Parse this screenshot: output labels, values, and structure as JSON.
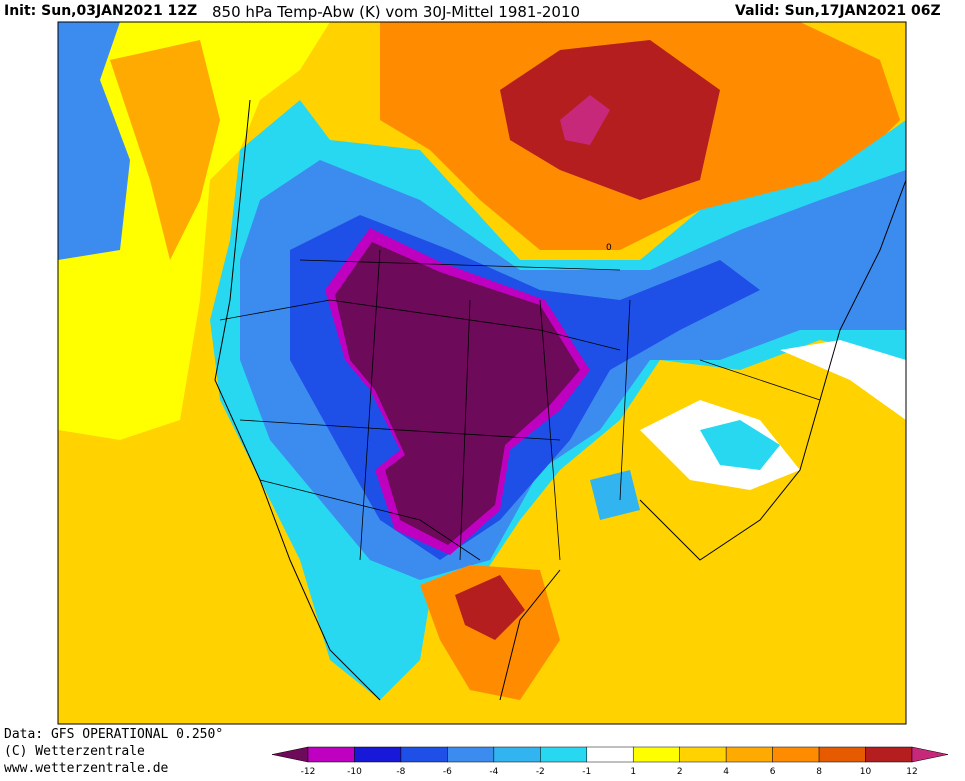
{
  "header": {
    "init": "Init: Sun,03JAN2021 12Z",
    "title": "850 hPa Temp-Abw (K) vom 30J-Mittel 1981-2010",
    "valid": "Valid: Sun,17JAN2021 06Z"
  },
  "footer": {
    "data": "Data: GFS OPERATIONAL 0.250°",
    "copyright": "(C) Wetterzentrale",
    "url": "www.wetterzentrale.de"
  },
  "contour_label": "0",
  "colorbar": {
    "ticks": [
      -12,
      -10,
      -8,
      -6,
      -4,
      -2,
      -1,
      1,
      2,
      4,
      6,
      8,
      10,
      12
    ],
    "colors": [
      "#6e0a5a",
      "#c000c0",
      "#1818d8",
      "#1e50e8",
      "#3c8cf0",
      "#32b4f0",
      "#28d8f0",
      "#ffffff",
      "#ffff00",
      "#ffd200",
      "#ffaa00",
      "#ff8c00",
      "#e65a00",
      "#b41e1e",
      "#c8287a"
    ]
  }
}
